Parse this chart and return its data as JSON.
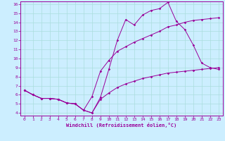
{
  "xlabel": "Windchill (Refroidissement éolien,°C)",
  "line_color": "#990099",
  "bg_color": "#cceeff",
  "grid_color": "#aadddd",
  "xlim": [
    -0.5,
    23.5
  ],
  "ylim": [
    3.7,
    16.3
  ],
  "xticks": [
    0,
    1,
    2,
    3,
    4,
    5,
    6,
    7,
    8,
    9,
    10,
    11,
    12,
    13,
    14,
    15,
    16,
    17,
    18,
    19,
    20,
    21,
    22,
    23
  ],
  "yticks": [
    4,
    5,
    6,
    7,
    8,
    9,
    10,
    11,
    12,
    13,
    14,
    15,
    16
  ],
  "line1_x": [
    0,
    1,
    2,
    3,
    4,
    5,
    6,
    7,
    8,
    9,
    10,
    11,
    12,
    13,
    14,
    15,
    16,
    17,
    18,
    19,
    20,
    21,
    22,
    23
  ],
  "line1_y": [
    6.5,
    6.0,
    5.6,
    5.6,
    5.5,
    5.1,
    5.0,
    4.3,
    4.0,
    5.7,
    8.8,
    12.0,
    14.3,
    13.7,
    14.8,
    15.3,
    15.5,
    16.2,
    14.1,
    13.2,
    11.5,
    9.5,
    9.0,
    8.8
  ],
  "line2_x": [
    0,
    1,
    2,
    3,
    4,
    5,
    6,
    7,
    8,
    9,
    10,
    11,
    12,
    13,
    14,
    15,
    16,
    17,
    18,
    19,
    20,
    21,
    22,
    23
  ],
  "line2_y": [
    6.5,
    6.0,
    5.6,
    5.6,
    5.5,
    5.1,
    5.0,
    4.3,
    5.8,
    8.6,
    9.8,
    10.8,
    11.3,
    11.8,
    12.2,
    12.6,
    13.0,
    13.5,
    13.7,
    14.0,
    14.2,
    14.3,
    14.4,
    14.5
  ],
  "line3_x": [
    0,
    1,
    2,
    3,
    4,
    5,
    6,
    7,
    8,
    9,
    10,
    11,
    12,
    13,
    14,
    15,
    16,
    17,
    18,
    19,
    20,
    21,
    22,
    23
  ],
  "line3_y": [
    6.5,
    6.0,
    5.6,
    5.6,
    5.5,
    5.1,
    5.0,
    4.3,
    4.0,
    5.5,
    6.2,
    6.8,
    7.2,
    7.5,
    7.8,
    8.0,
    8.2,
    8.4,
    8.5,
    8.6,
    8.7,
    8.8,
    8.9,
    9.0
  ]
}
